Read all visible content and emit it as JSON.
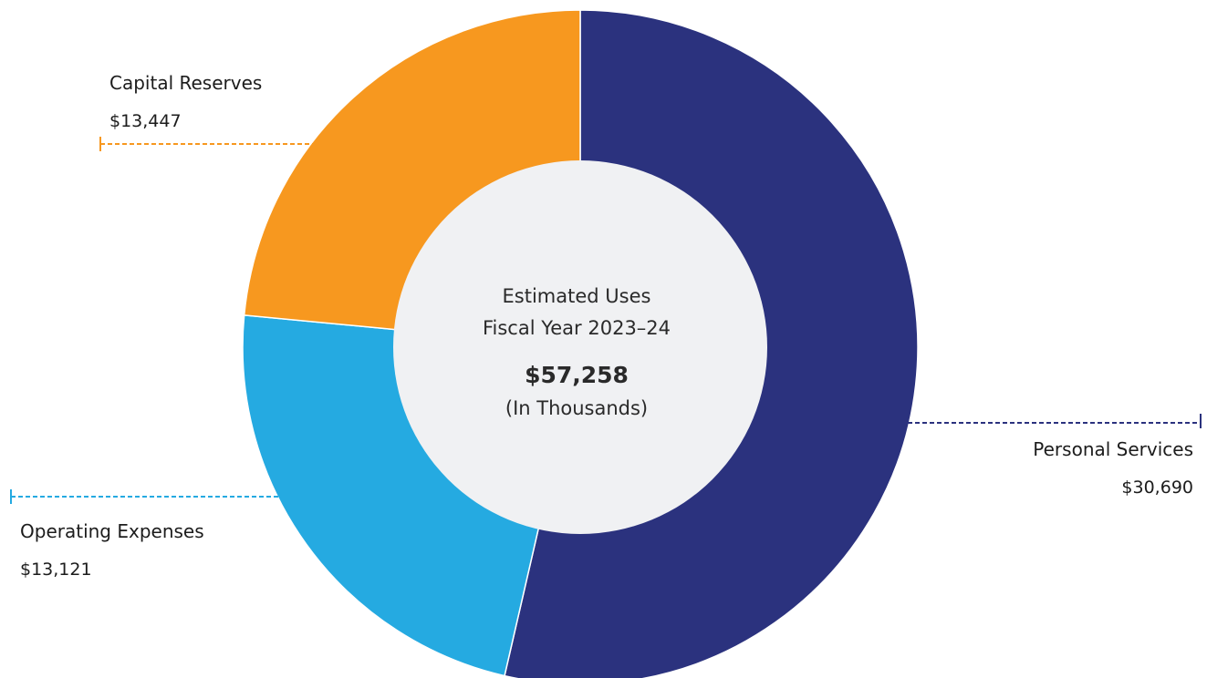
{
  "chart_data": {
    "type": "pie",
    "variant": "donut",
    "center": {
      "line1": "Estimated Uses",
      "line2": "Fiscal Year 2023–24",
      "total": "$57,258",
      "unit": "(In Thousands)"
    },
    "slices": [
      {
        "label": "Personal Services",
        "value": 30690,
        "display": "$30,690",
        "color": "#2b327e"
      },
      {
        "label": "Operating Expenses",
        "value": 13121,
        "display": "$13,121",
        "color": "#25aae1"
      },
      {
        "label": "Capital Reserves",
        "value": 13447,
        "display": "$13,447",
        "color": "#f7981f"
      }
    ],
    "start_angle_deg": 0,
    "direction": "clockwise",
    "center_color": "#f0f1f3"
  }
}
